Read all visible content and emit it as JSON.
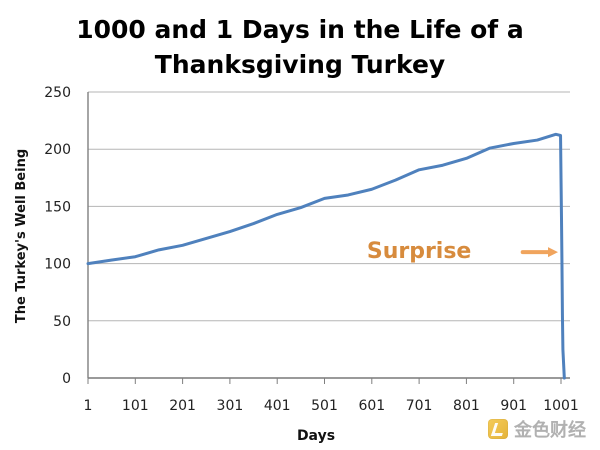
{
  "chart_data": {
    "type": "line",
    "title": "1000 and 1 Days in the Life of a Thanksgiving Turkey",
    "title_lines": [
      "1000 and 1 Days in the Life of a",
      "Thanksgiving Turkey"
    ],
    "xlabel": "Days",
    "ylabel": "The Turkey's Well Being",
    "xlim": [
      1,
      1020
    ],
    "ylim": [
      0,
      250
    ],
    "grid": true,
    "x_ticks": [
      1,
      101,
      201,
      301,
      401,
      501,
      601,
      701,
      801,
      901,
      1001
    ],
    "y_ticks": [
      0,
      50,
      100,
      150,
      200,
      250
    ],
    "series": [
      {
        "color": "#4f81bd",
        "points": [
          [
            1,
            100
          ],
          [
            50,
            103
          ],
          [
            101,
            106
          ],
          [
            151,
            112
          ],
          [
            201,
            116
          ],
          [
            251,
            122
          ],
          [
            301,
            128
          ],
          [
            351,
            135
          ],
          [
            401,
            143
          ],
          [
            451,
            149
          ],
          [
            501,
            157
          ],
          [
            551,
            160
          ],
          [
            601,
            165
          ],
          [
            651,
            173
          ],
          [
            701,
            182
          ],
          [
            751,
            186
          ],
          [
            801,
            192
          ],
          [
            851,
            201
          ],
          [
            901,
            205
          ],
          [
            951,
            208
          ],
          [
            990,
            213
          ],
          [
            1000,
            212
          ],
          [
            1001,
            175
          ],
          [
            1002,
            140
          ],
          [
            1003,
            100
          ],
          [
            1004,
            55
          ],
          [
            1005,
            25
          ],
          [
            1008,
            0
          ]
        ]
      }
    ],
    "annotations": [
      {
        "text": "Surprise",
        "x": 701,
        "y": 110,
        "color": "#d78b3d",
        "arrow_to": [
          1001,
          110
        ]
      }
    ]
  },
  "watermark": {
    "text": "金色财经"
  },
  "style": {
    "axis_color": "#7f7f7f",
    "grid_color": "#b5b5b5",
    "text_color": "#222222",
    "arrow_color": "#f0a45d",
    "series_color": "#4f81bd"
  }
}
